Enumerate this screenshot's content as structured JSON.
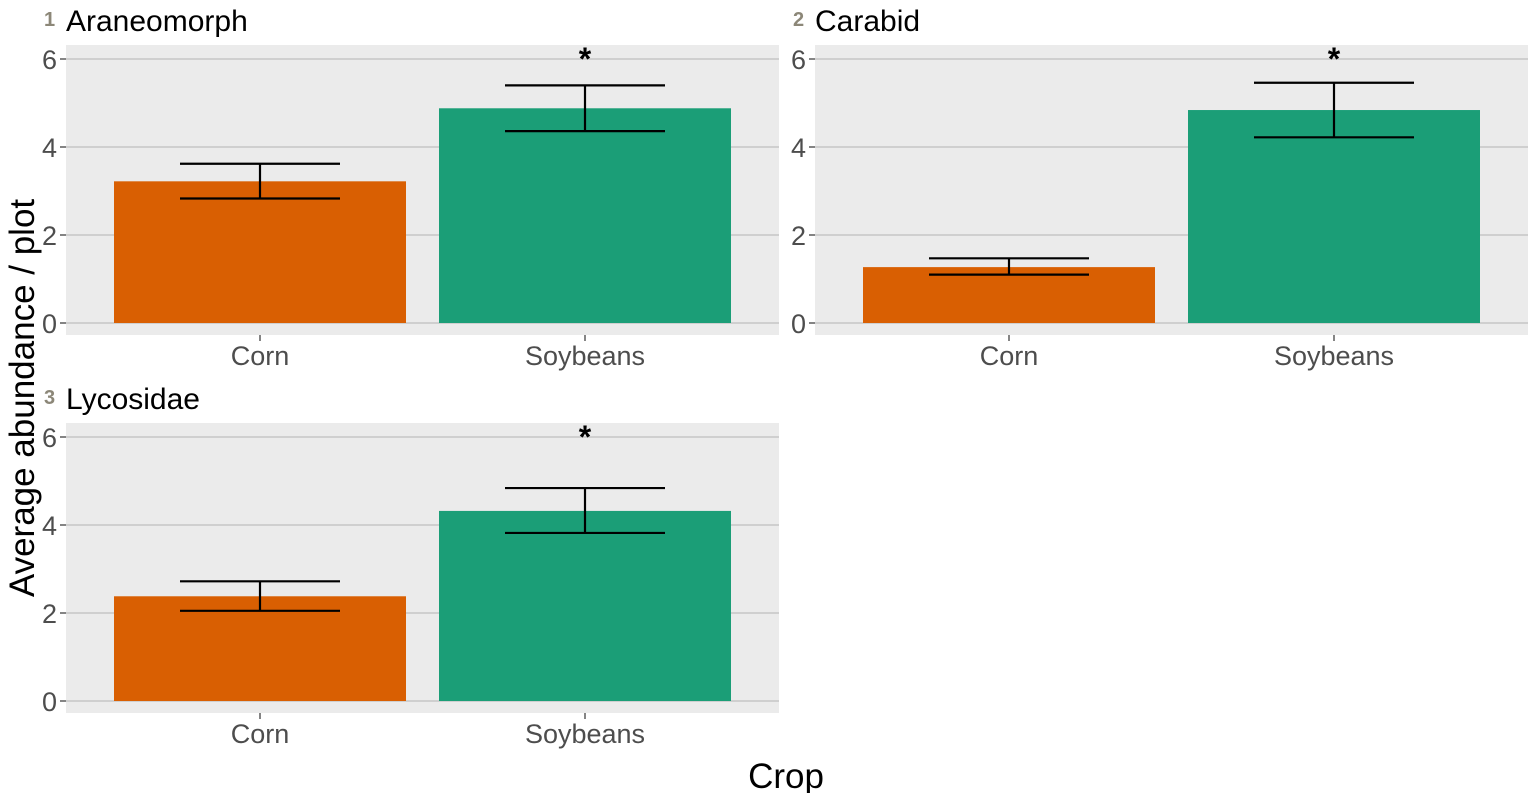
{
  "chart_data": {
    "type": "bar",
    "xlabel": "Crop",
    "ylabel": "Average abundance / plot",
    "ylim": [
      0,
      6
    ],
    "yticks": [
      "0",
      "2",
      "4",
      "6"
    ],
    "grid": true,
    "categories": [
      "Corn",
      "Soybeans"
    ],
    "colors": {
      "Corn": "#d95f02",
      "Soybeans": "#1b9e77"
    },
    "panels": [
      {
        "number": "1",
        "title": "Araneomorph",
        "values": [
          3.22,
          4.88
        ],
        "error_low": [
          2.83,
          4.36
        ],
        "error_high": [
          3.62,
          5.4
        ],
        "significance": [
          "",
          "*"
        ]
      },
      {
        "number": "2",
        "title": "Carabid",
        "values": [
          1.27,
          4.84
        ],
        "error_low": [
          1.1,
          4.22
        ],
        "error_high": [
          1.47,
          5.46
        ],
        "significance": [
          "",
          "*"
        ]
      },
      {
        "number": "3",
        "title": "Lycosidae",
        "values": [
          2.38,
          4.32
        ],
        "error_low": [
          2.05,
          3.82
        ],
        "error_high": [
          2.72,
          4.84
        ],
        "significance": [
          "",
          "*"
        ]
      }
    ]
  }
}
